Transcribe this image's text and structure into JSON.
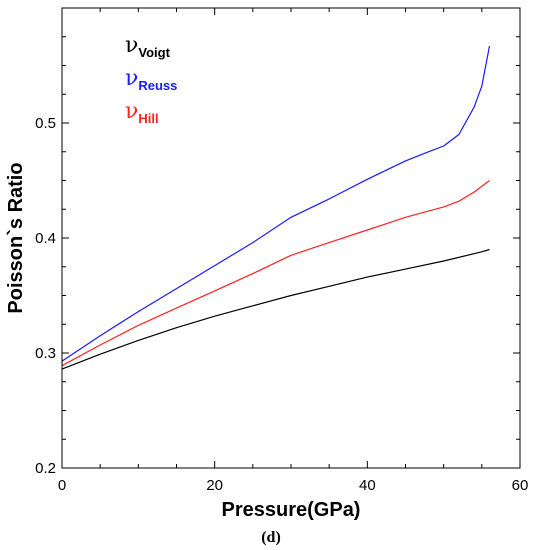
{
  "chart_data": {
    "type": "line",
    "xlabel": "Pressure(GPa)",
    "ylabel": "Poisson`s Ratio",
    "xlim": [
      0,
      60
    ],
    "ylim": [
      0.2,
      0.6
    ],
    "x_ticks": [
      "0",
      "20",
      "40",
      "60"
    ],
    "y_ticks": [
      "0.2",
      "0.3",
      "0.4",
      "0.5"
    ],
    "panel_label": "(d)",
    "legend_placement": "top-left",
    "grid": false,
    "series": [
      {
        "name": "Voigt",
        "symbol": "ν",
        "color": "#000000",
        "x": [
          0,
          5,
          10,
          15,
          20,
          25,
          30,
          35,
          40,
          45,
          50,
          55,
          56
        ],
        "y": [
          0.286,
          0.299,
          0.311,
          0.322,
          0.332,
          0.341,
          0.35,
          0.358,
          0.366,
          0.373,
          0.38,
          0.388,
          0.39
        ]
      },
      {
        "name": "Reuss",
        "symbol": "ν",
        "color": "#1a1aff",
        "x": [
          0,
          5,
          10,
          15,
          20,
          25,
          30,
          35,
          40,
          45,
          48,
          50,
          52,
          54,
          55,
          56
        ],
        "y": [
          0.293,
          0.315,
          0.336,
          0.356,
          0.376,
          0.396,
          0.418,
          0.434,
          0.451,
          0.467,
          0.475,
          0.48,
          0.49,
          0.514,
          0.532,
          0.567
        ]
      },
      {
        "name": "Hill",
        "symbol": "ν",
        "color": "#ff2020",
        "x": [
          0,
          5,
          10,
          15,
          20,
          25,
          30,
          35,
          40,
          45,
          50,
          52,
          54,
          56
        ],
        "y": [
          0.289,
          0.307,
          0.324,
          0.339,
          0.354,
          0.369,
          0.385,
          0.396,
          0.407,
          0.418,
          0.427,
          0.432,
          0.44,
          0.45
        ]
      }
    ]
  }
}
